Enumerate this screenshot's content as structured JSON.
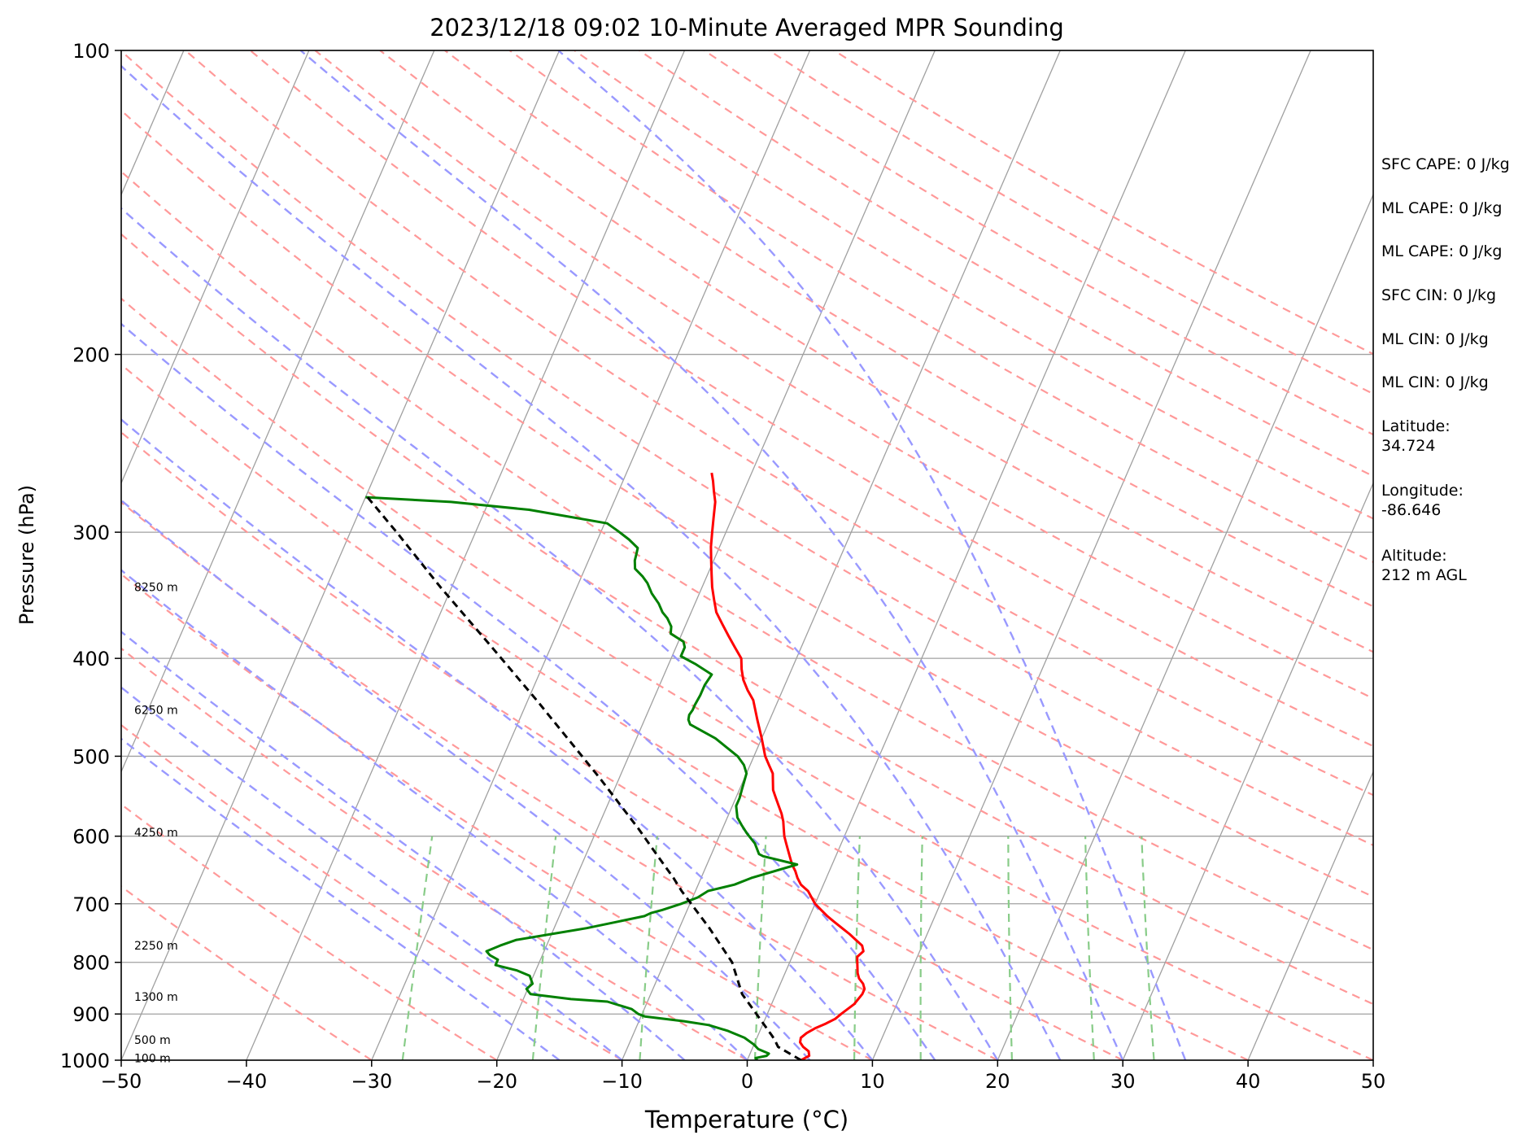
{
  "chart_data": {
    "type": "line",
    "title": "2023/12/18 09:02 10-Minute Averaged MPR Sounding",
    "xlabel": "Temperature (°C)",
    "ylabel": "Pressure (hPa)",
    "xlim": [
      -50,
      50
    ],
    "ylim": [
      1000,
      100
    ],
    "y_scale": "log",
    "x_ticks": [
      "−50",
      "−40",
      "−30",
      "−20",
      "−10",
      "0",
      "10",
      "20",
      "30",
      "40",
      "50"
    ],
    "y_ticks": [
      "100",
      "200",
      "300",
      "400",
      "500",
      "600",
      "700",
      "800",
      "900",
      "1000"
    ],
    "grid": true,
    "height_labels": [
      {
        "text": "8250 m",
        "p": 340
      },
      {
        "text": "6250 m",
        "p": 450
      },
      {
        "text": "4250 m",
        "p": 595
      },
      {
        "text": "2250 m",
        "p": 770
      },
      {
        "text": "1300 m",
        "p": 865
      },
      {
        "text": "500 m",
        "p": 955
      },
      {
        "text": "100 m",
        "p": 995
      }
    ],
    "colors": {
      "temperature": "#ff0000",
      "dewpoint": "#008000",
      "parcel": "#000000",
      "isotherm": "#a0a0a0",
      "dry_adiabat": "#ff9999",
      "moist_adiabat": "#9999ff",
      "mixing_ratio": "#88cc88"
    },
    "series": [
      {
        "key": "temperature",
        "points": [
          [
            4.3,
            1000
          ],
          [
            4.8,
            990
          ],
          [
            4.6,
            980
          ],
          [
            4.0,
            970
          ],
          [
            3.6,
            960
          ],
          [
            3.5,
            950
          ],
          [
            3.8,
            940
          ],
          [
            4.3,
            930
          ],
          [
            5.0,
            920
          ],
          [
            5.6,
            910
          ],
          [
            5.9,
            900
          ],
          [
            6.6,
            880
          ],
          [
            6.9,
            860
          ],
          [
            6.9,
            850
          ],
          [
            6.6,
            840
          ],
          [
            6.1,
            830
          ],
          [
            5.8,
            820
          ],
          [
            5.6,
            810
          ],
          [
            5.4,
            800
          ],
          [
            5.2,
            790
          ],
          [
            5.5,
            780
          ],
          [
            5.2,
            770
          ],
          [
            4.5,
            760
          ],
          [
            3.8,
            750
          ],
          [
            3.0,
            740
          ],
          [
            2.2,
            730
          ],
          [
            1.4,
            720
          ],
          [
            0.7,
            710
          ],
          [
            0.0,
            700
          ],
          [
            -0.5,
            690
          ],
          [
            -1.0,
            680
          ],
          [
            -1.8,
            670
          ],
          [
            -2.3,
            660
          ],
          [
            -2.7,
            650
          ],
          [
            -3.2,
            640
          ],
          [
            -3.6,
            630
          ],
          [
            -4.0,
            620
          ],
          [
            -4.4,
            610
          ],
          [
            -4.8,
            600
          ],
          [
            -5.1,
            590
          ],
          [
            -5.4,
            580
          ],
          [
            -5.8,
            570
          ],
          [
            -6.3,
            560
          ],
          [
            -6.8,
            550
          ],
          [
            -7.3,
            540
          ],
          [
            -7.6,
            530
          ],
          [
            -7.9,
            520
          ],
          [
            -8.5,
            510
          ],
          [
            -9.1,
            500
          ],
          [
            -10.0,
            480
          ],
          [
            -11.0,
            460
          ],
          [
            -12.0,
            440
          ],
          [
            -12.8,
            430
          ],
          [
            -13.5,
            420
          ],
          [
            -14.0,
            410
          ],
          [
            -14.4,
            400
          ],
          [
            -15.3,
            390
          ],
          [
            -16.2,
            380
          ],
          [
            -17.1,
            370
          ],
          [
            -18.0,
            360
          ],
          [
            -18.6,
            350
          ],
          [
            -19.2,
            340
          ],
          [
            -19.7,
            330
          ],
          [
            -20.2,
            320
          ],
          [
            -20.7,
            310
          ],
          [
            -21.1,
            300
          ],
          [
            -21.5,
            290
          ],
          [
            -21.9,
            280
          ],
          [
            -22.4,
            273
          ],
          [
            -22.8,
            267
          ],
          [
            -23.2,
            262
          ]
        ]
      },
      {
        "key": "dewpoint",
        "points": [
          [
            0.8,
            1000
          ],
          [
            0.6,
            995
          ],
          [
            1.4,
            990
          ],
          [
            1.5,
            985
          ],
          [
            0.5,
            975
          ],
          [
            0.0,
            965
          ],
          [
            -1.0,
            950
          ],
          [
            -2.6,
            935
          ],
          [
            -4.3,
            923
          ],
          [
            -6.4,
            915
          ],
          [
            -9.7,
            905
          ],
          [
            -10.3,
            900
          ],
          [
            -11.0,
            890
          ],
          [
            -13.2,
            875
          ],
          [
            -16.2,
            870
          ],
          [
            -19.6,
            860
          ],
          [
            -20.1,
            850
          ],
          [
            -19.8,
            840
          ],
          [
            -20.3,
            825
          ],
          [
            -21.5,
            815
          ],
          [
            -23.4,
            805
          ],
          [
            -23.4,
            795
          ],
          [
            -24.2,
            787
          ],
          [
            -24.6,
            780
          ],
          [
            -23.7,
            770
          ],
          [
            -22.6,
            760
          ],
          [
            -17.4,
            740
          ],
          [
            -13.2,
            720
          ],
          [
            -12.8,
            715
          ],
          [
            -12.0,
            710
          ],
          [
            -10.7,
            700
          ],
          [
            -9.6,
            690
          ],
          [
            -9.0,
            680
          ],
          [
            -7.1,
            670
          ],
          [
            -6.0,
            660
          ],
          [
            -2.8,
            640
          ],
          [
            -5.8,
            628
          ],
          [
            -6.2,
            625
          ],
          [
            -6.9,
            610
          ],
          [
            -7.9,
            596
          ],
          [
            -8.6,
            585
          ],
          [
            -9.2,
            575
          ],
          [
            -9.7,
            560
          ],
          [
            -9.7,
            550
          ],
          [
            -9.8,
            540
          ],
          [
            -9.9,
            530
          ],
          [
            -10.0,
            520
          ],
          [
            -10.5,
            510
          ],
          [
            -11.3,
            500
          ],
          [
            -13.7,
            480
          ],
          [
            -16.2,
            465
          ],
          [
            -16.5,
            460
          ],
          [
            -16.6,
            455
          ],
          [
            -16.5,
            450
          ],
          [
            -16.5,
            445
          ],
          [
            -16.4,
            435
          ],
          [
            -16.4,
            425
          ],
          [
            -16.2,
            415
          ],
          [
            -17.9,
            405
          ],
          [
            -19.3,
            398
          ],
          [
            -19.3,
            390
          ],
          [
            -19.6,
            385
          ],
          [
            -20.9,
            378
          ],
          [
            -21.1,
            372
          ],
          [
            -21.7,
            365
          ],
          [
            -22.3,
            360
          ],
          [
            -22.9,
            353
          ],
          [
            -23.8,
            345
          ],
          [
            -24.5,
            337
          ],
          [
            -25.1,
            332
          ],
          [
            -26.0,
            326
          ],
          [
            -26.3,
            320
          ],
          [
            -26.4,
            315
          ],
          [
            -26.5,
            311
          ],
          [
            -27.5,
            305
          ],
          [
            -28.7,
            299
          ],
          [
            -29.8,
            294
          ],
          [
            -36.5,
            285
          ],
          [
            -43.0,
            280
          ],
          [
            -50.0,
            277
          ]
        ]
      },
      {
        "key": "parcel",
        "points": [
          [
            4.3,
            1000
          ],
          [
            2.0,
            970
          ],
          [
            1.5,
            955
          ],
          [
            1.1,
            945
          ],
          [
            -2.7,
            860
          ],
          [
            -4.6,
            800
          ],
          [
            -7.6,
            740
          ],
          [
            -11.1,
            680
          ],
          [
            -12.2,
            660
          ],
          [
            -14.4,
            625
          ],
          [
            -16.7,
            590
          ],
          [
            -21.6,
            525
          ],
          [
            -29.3,
            440
          ],
          [
            -34.7,
            390
          ],
          [
            -40.9,
            340
          ],
          [
            -46.3,
            300
          ],
          [
            -50.0,
            276
          ]
        ]
      }
    ],
    "stats": [
      "SFC CAPE: 0 J/kg",
      "ML CAPE: 0 J/kg",
      "ML CAPE: 0 J/kg",
      "SFC CIN: 0 J/kg",
      "ML CIN: 0 J/kg",
      "ML CIN: 0 J/kg"
    ],
    "location": {
      "latitude_label": "Latitude:",
      "latitude": "34.724",
      "longitude_label": "Longitude:",
      "longitude": "-86.646",
      "altitude_label": "Altitude:",
      "altitude": "212 m AGL"
    }
  }
}
